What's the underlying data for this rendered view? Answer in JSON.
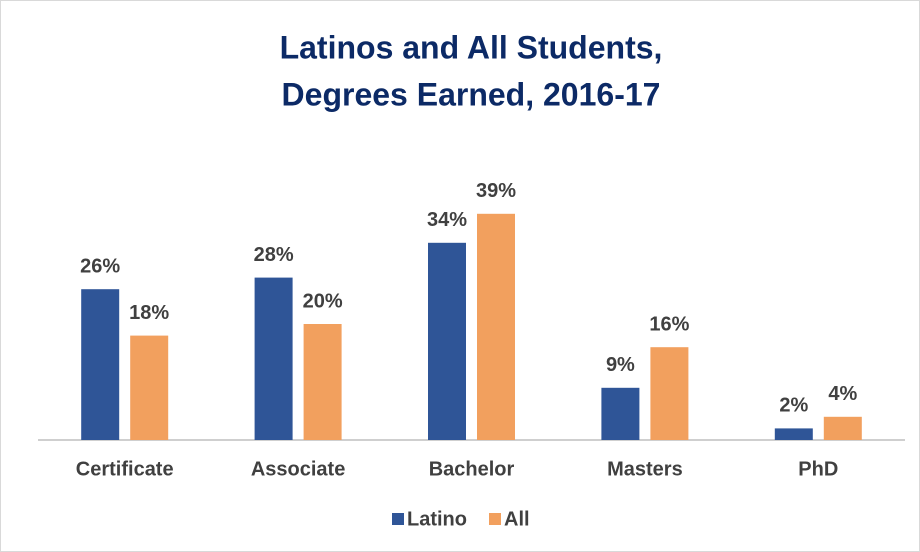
{
  "chart_data": {
    "type": "bar",
    "title": [
      "Latinos and All Students,",
      "Degrees Earned, 2016-17"
    ],
    "categories": [
      "Certificate",
      "Associate",
      "Bachelor",
      "Masters",
      "PhD"
    ],
    "series": [
      {
        "name": "Latino",
        "color": "#2f5597",
        "values": [
          26,
          28,
          34,
          9,
          2
        ],
        "value_labels": [
          "26%",
          "28%",
          "34%",
          "9%",
          "2%"
        ]
      },
      {
        "name": "All",
        "color": "#f2a05e",
        "values": [
          18,
          20,
          39,
          16,
          4
        ],
        "value_labels": [
          "18%",
          "20%",
          "39%",
          "16%",
          "4%"
        ]
      }
    ]
  }
}
